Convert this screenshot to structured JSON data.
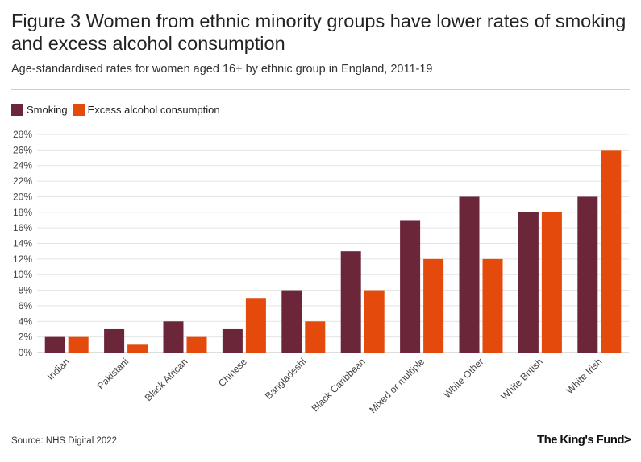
{
  "header": {
    "title": "Figure 3 Women from ethnic minority groups have lower rates of smoking and excess alcohol consumption",
    "subtitle": "Age-standardised rates for women aged 16+ by ethnic group in England, 2011-19"
  },
  "footer": {
    "source": "Source: NHS Digital 2022",
    "logo": "The King's Fund>"
  },
  "colors": {
    "smoking": "#6b2639",
    "alcohol": "#e34a0c",
    "grid": "#e3e3e3",
    "axis": "#bbbbbb",
    "text": "#444444"
  },
  "chart_data": {
    "type": "bar",
    "title": "Figure 3 Women from ethnic minority groups have lower rates of smoking and excess alcohol consumption",
    "xlabel": "",
    "ylabel": "",
    "ylim": [
      0,
      28
    ],
    "ytick_step": 2,
    "ytick_suffix": "%",
    "legend_position": "top-left",
    "grid": true,
    "categories": [
      "Indian",
      "Pakistani",
      "Black African",
      "Chinese",
      "Bangladeshi",
      "Black Caribbean",
      "Mixed or multiple",
      "White Other",
      "White British",
      "White Irish"
    ],
    "series": [
      {
        "name": "Smoking",
        "values": [
          2,
          3,
          4,
          3,
          8,
          13,
          17,
          20,
          18,
          20
        ]
      },
      {
        "name": "Excess alcohol consumption",
        "values": [
          2,
          1,
          2,
          7,
          4,
          8,
          12,
          12,
          18,
          26
        ]
      }
    ]
  }
}
